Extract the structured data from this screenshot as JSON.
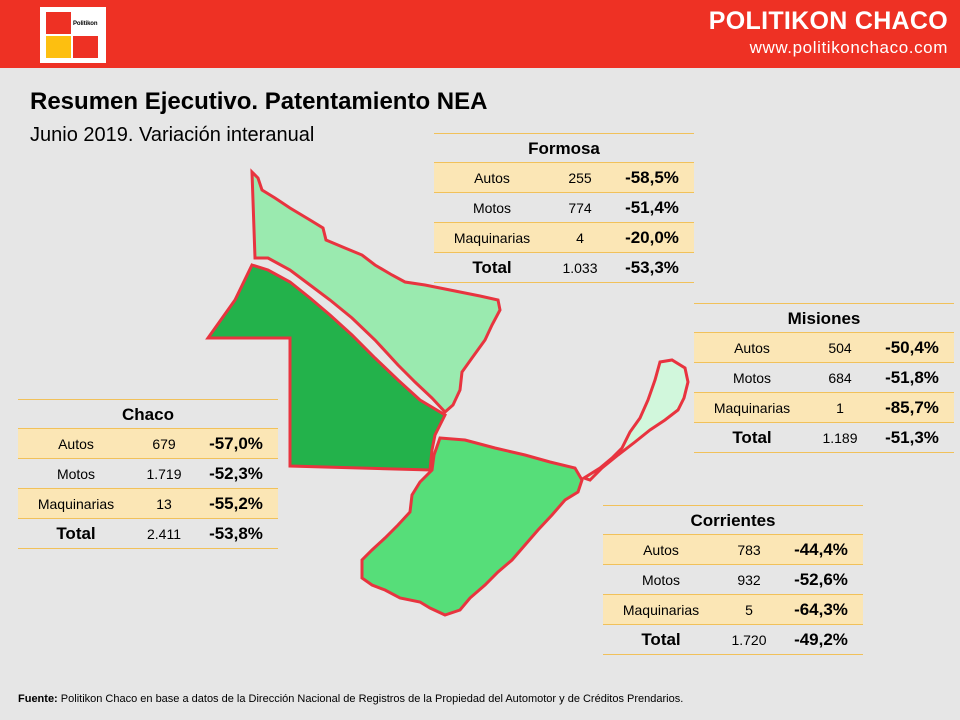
{
  "header": {
    "logo_text": "Politikon",
    "brand_name": "POLITIKON CHACO",
    "brand_url": "www.politikonchaco.com"
  },
  "title": "Resumen Ejecutivo. Patentamiento NEA",
  "subtitle": "Junio 2019. Variación interanual",
  "colors": {
    "header": "#ee3124",
    "formosa": "#9aeaaf",
    "chaco": "#23b24b",
    "corrientes": "#56de79",
    "misiones": "#d1f7dc",
    "border": "#e8343f",
    "table_row": "#fbe6b5"
  },
  "tables": {
    "formosa": {
      "name": "Formosa",
      "rows": [
        {
          "label": "Autos",
          "count": "255",
          "pct": "-58,5%"
        },
        {
          "label": "Motos",
          "count": "774",
          "pct": "-51,4%"
        },
        {
          "label": "Maquinarias",
          "count": "4",
          "pct": "-20,0%"
        },
        {
          "label": "Total",
          "count": "1.033",
          "pct": "-53,3%"
        }
      ]
    },
    "misiones": {
      "name": "Misiones",
      "rows": [
        {
          "label": "Autos",
          "count": "504",
          "pct": "-50,4%"
        },
        {
          "label": "Motos",
          "count": "684",
          "pct": "-51,8%"
        },
        {
          "label": "Maquinarias",
          "count": "1",
          "pct": "-85,7%"
        },
        {
          "label": "Total",
          "count": "1.189",
          "pct": "-51,3%"
        }
      ]
    },
    "chaco": {
      "name": "Chaco",
      "rows": [
        {
          "label": "Autos",
          "count": "679",
          "pct": "-57,0%"
        },
        {
          "label": "Motos",
          "count": "1.719",
          "pct": "-52,3%"
        },
        {
          "label": "Maquinarias",
          "count": "13",
          "pct": "-55,2%"
        },
        {
          "label": "Total",
          "count": "2.411",
          "pct": "-53,8%"
        }
      ]
    },
    "corrientes": {
      "name": "Corrientes",
      "rows": [
        {
          "label": "Autos",
          "count": "783",
          "pct": "-44,4%"
        },
        {
          "label": "Motos",
          "count": "932",
          "pct": "-52,6%"
        },
        {
          "label": "Maquinarias",
          "count": "5",
          "pct": "-64,3%"
        },
        {
          "label": "Total",
          "count": "1.720",
          "pct": "-49,2%"
        }
      ]
    }
  },
  "footer": {
    "label": "Fuente:",
    "text": " Politikon Chaco en base a datos de la Dirección Nacional de Registros de la Propiedad del Automotor y de Créditos Prendarios."
  }
}
